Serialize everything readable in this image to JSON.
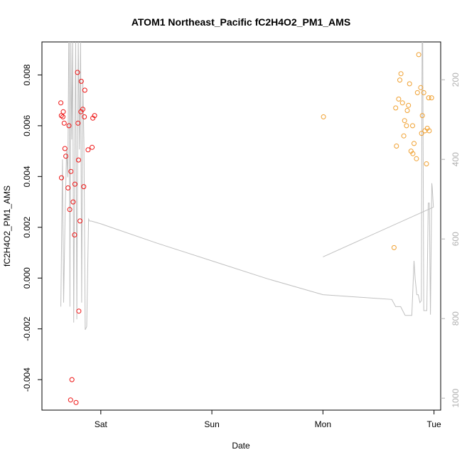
{
  "chart_data": {
    "type": "scatter",
    "title": "ATOM1 Northeast_Pacific fC2H4O2_PM1_AMS",
    "xlabel": "Date",
    "ylabel": "fC2H4O2_PM1_AMS",
    "x_ticks": [
      {
        "label": "Sat",
        "x": 1.0
      },
      {
        "label": "Sun",
        "x": 2.0
      },
      {
        "label": "Mon",
        "x": 3.0
      },
      {
        "label": "Tue",
        "x": 4.0
      }
    ],
    "xlim": [
      0.47,
      4.06
    ],
    "ylim": [
      -0.0052,
      0.0093
    ],
    "y_ticks": [
      -0.004,
      -0.002,
      0.0,
      0.002,
      0.004,
      0.006,
      0.008
    ],
    "y_tick_labels": [
      "-0.004",
      "-0.002",
      "0.000",
      "0.002",
      "0.004",
      "0.006",
      "0.008"
    ],
    "secondary_axis": {
      "ticks": [
        200,
        400,
        600,
        800,
        1000
      ],
      "tick_labels": [
        "200",
        "400",
        "600",
        "800",
        "1000"
      ],
      "range": [
        105,
        1030
      ],
      "reversed": true,
      "color": "#b0b0b0"
    },
    "grid": false,
    "series": [
      {
        "color": "#ee1111",
        "marker": "open-circle",
        "x": [
          0.64,
          0.645,
          0.646,
          0.659,
          0.662,
          0.67,
          0.677,
          0.685,
          0.705,
          0.713,
          0.72,
          0.728,
          0.731,
          0.74,
          0.751,
          0.764,
          0.767,
          0.777,
          0.79,
          0.795,
          0.799,
          0.802,
          0.813,
          0.821,
          0.824,
          0.838,
          0.846,
          0.852,
          0.856,
          0.885,
          0.922,
          0.928,
          0.944
        ],
        "y": [
          0.0069,
          0.0064,
          0.00395,
          0.00635,
          0.00655,
          0.0061,
          0.0051,
          0.0048,
          0.00355,
          0.006,
          0.0027,
          -0.0048,
          0.0042,
          -0.004,
          0.003,
          0.0017,
          0.0037,
          -0.0049,
          0.0081,
          0.0061,
          0.00465,
          -0.0013,
          0.00225,
          0.00655,
          0.00775,
          0.00665,
          0.0036,
          0.00635,
          0.0074,
          0.00505,
          0.00515,
          0.0063,
          0.0064
        ]
      },
      {
        "color": "#f0a030",
        "marker": "open-circle",
        "x": [
          3.005,
          3.64,
          3.655,
          3.662,
          3.682,
          3.692,
          3.702,
          3.716,
          3.728,
          3.735,
          3.752,
          3.759,
          3.77,
          3.78,
          3.793,
          3.807,
          3.81,
          3.82,
          3.842,
          3.851,
          3.862,
          3.88,
          3.888,
          3.895,
          3.908,
          3.918,
          3.932,
          3.94,
          3.952,
          3.957,
          3.978
        ],
        "y": [
          0.00635,
          0.0012,
          0.0067,
          0.0052,
          0.00705,
          0.0078,
          0.00805,
          0.0069,
          0.0056,
          0.0062,
          0.006,
          0.0066,
          0.0068,
          0.00765,
          0.005,
          0.006,
          0.0049,
          0.0053,
          0.0047,
          0.0073,
          0.0088,
          0.0075,
          0.0057,
          0.0064,
          0.0073,
          0.0058,
          0.0045,
          0.0059,
          0.0071,
          0.0058,
          0.0071
        ]
      },
      {
        "color": "#c0c0c0",
        "type": "line",
        "axis": "secondary",
        "x": [
          0.64,
          0.655,
          0.665,
          0.68,
          0.692,
          0.703,
          0.712,
          0.716,
          0.722,
          0.73,
          0.738,
          0.747,
          0.756,
          0.766,
          0.774,
          0.784,
          0.797,
          0.808,
          0.818,
          0.828,
          0.838,
          0.848,
          0.86,
          0.873,
          0.89,
          0.9,
          0.915,
          1.0,
          1.5,
          2.0,
          2.5,
          3.0,
          3.62,
          3.655,
          3.7,
          3.74,
          3.76,
          3.8,
          3.82,
          3.83,
          3.845,
          3.858,
          3.873,
          3.886,
          3.893,
          3.898,
          3.908,
          3.915,
          3.935,
          3.948,
          3.958,
          3.968,
          3.98,
          3.984,
          3.992,
          3.995,
          3.0
        ],
        "y": [
          770,
          400,
          760,
          520,
          375,
          445,
          102,
          95,
          770,
          104,
          350,
          95,
          810,
          345,
          98,
          802,
          100,
          375,
          100,
          760,
          200,
          360,
          828,
          820,
          550,
          555,
          555,
          562,
          610,
          655,
          700,
          740,
          752,
          770,
          770,
          792,
          792,
          792,
          655,
          700,
          740,
          740,
          760,
          755,
          102,
          98,
          780,
          780,
          780,
          510,
          510,
          790,
          460,
          470,
          510,
          520,
          645
        ]
      }
    ]
  }
}
